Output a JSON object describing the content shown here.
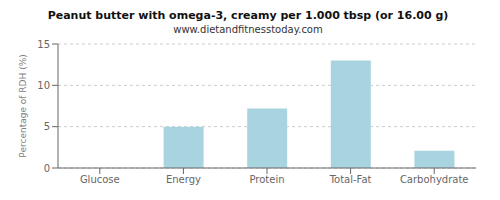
{
  "chart_data": {
    "type": "bar",
    "title": "Peanut butter with omega-3, creamy per 1.000 tbsp (or 16.00 g)",
    "subtitle": "www.dietandfitnesstoday.com",
    "categories": [
      "Glucose",
      "Energy",
      "Protein",
      "Total-Fat",
      "Carbohydrate"
    ],
    "values": [
      0,
      5.0,
      7.2,
      13.0,
      2.1
    ],
    "color": "#a8d4e0",
    "ylabel": "Percentage of RDH (%)",
    "ylim": [
      0,
      15
    ],
    "yticks": [
      0,
      5,
      10,
      15
    ],
    "grid": true
  }
}
